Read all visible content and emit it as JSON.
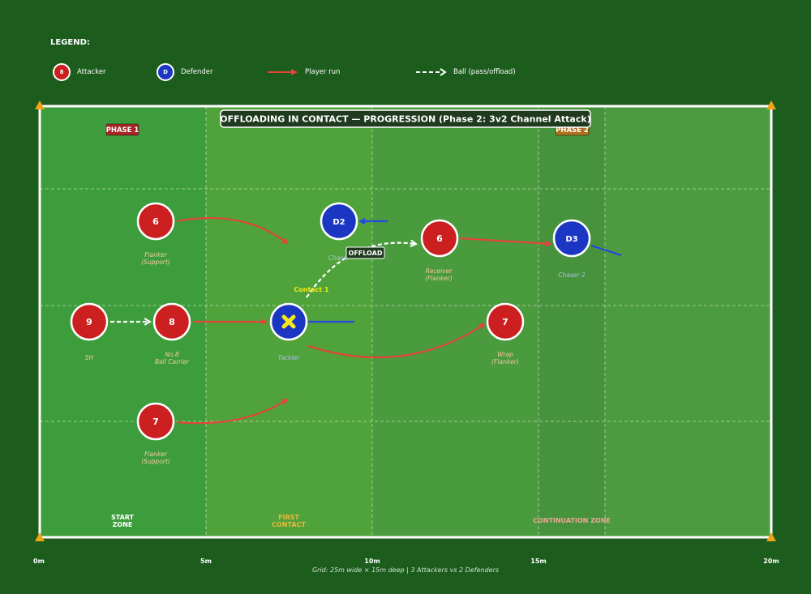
{
  "legend": {
    "title": "LEGEND:",
    "attacker": {
      "chip": "8",
      "label": "Attacker"
    },
    "defender": {
      "chip": "D",
      "label": "Defender"
    },
    "run": {
      "label": "Player run"
    },
    "ball": {
      "label": "Ball (pass/offload)"
    }
  },
  "title": "OFFLOADING IN CONTACT — PROGRESSION (Phase 2: 3v2 Channel Attack)",
  "phase_badges": {
    "phase1": "PHASE 1",
    "phase2": "PHASE 2"
  },
  "zones": {
    "start": [
      "START",
      "ZONE"
    ],
    "contact": [
      "FIRST",
      "CONTACT"
    ],
    "continuation": "CONTINUATION ZONE"
  },
  "players": {
    "flanker6": {
      "num": "6",
      "label": [
        "Flanker",
        "(Support)"
      ]
    },
    "sh9": {
      "num": "9",
      "label": [
        "SH"
      ]
    },
    "no8": {
      "num": "8",
      "label": [
        "No.8",
        "Ball Carrier"
      ]
    },
    "flanker7": {
      "num": "7",
      "label": [
        "Flanker",
        "(Support)"
      ]
    },
    "tackler": {
      "label": [
        "Tackler"
      ]
    },
    "d2": {
      "num": "D2",
      "label": [
        "Chaser"
      ]
    },
    "receiver6": {
      "num": "6",
      "label": [
        "Receiver",
        "(Flanker)"
      ]
    },
    "wrap7": {
      "num": "7",
      "label": [
        "Wrap",
        "(Flanker)"
      ]
    },
    "d3": {
      "num": "D3",
      "label": [
        "Chaser 2"
      ]
    }
  },
  "annotations": {
    "offload": "OFFLOAD",
    "contact1": "Contact 1"
  },
  "scale": [
    "0m",
    "5m",
    "10m",
    "15m",
    "20m"
  ],
  "footnote": "Grid: 25m wide × 15m deep  |  3 Attackers vs 2 Defenders",
  "colors": {
    "background": "#1c5c1d",
    "attacker": "#cc1f1f",
    "defender": "#1c36c4",
    "run_arrow": "#e2453a",
    "ball": "#ffffff",
    "tackle_mark": "#f4e81a",
    "cone": "#f2a316"
  }
}
